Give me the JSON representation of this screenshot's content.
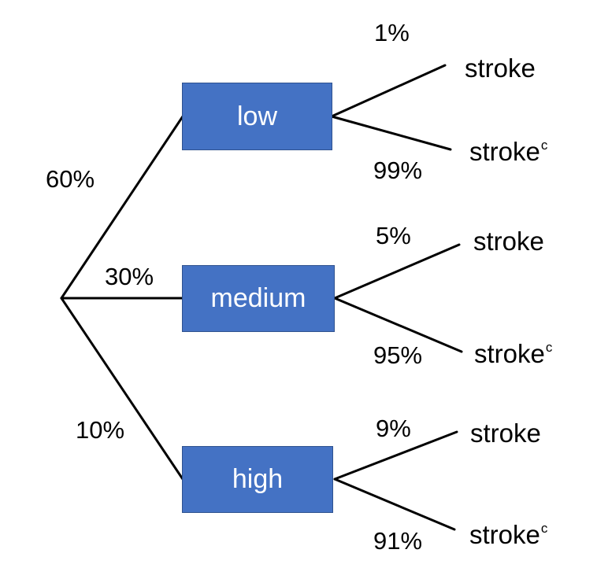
{
  "tree": {
    "root_branches": [
      {
        "prob": "60%",
        "node": "low",
        "outcomes": [
          {
            "prob": "1%",
            "label": "stroke",
            "sup": ""
          },
          {
            "prob": "99%",
            "label": "stroke",
            "sup": "c"
          }
        ]
      },
      {
        "prob": "30%",
        "node": "medium",
        "outcomes": [
          {
            "prob": "5%",
            "label": "stroke",
            "sup": ""
          },
          {
            "prob": "95%",
            "label": "stroke",
            "sup": "c"
          }
        ]
      },
      {
        "prob": "10%",
        "node": "high",
        "outcomes": [
          {
            "prob": "9%",
            "label": "stroke",
            "sup": ""
          },
          {
            "prob": "91%",
            "label": "stroke",
            "sup": "c"
          }
        ]
      }
    ]
  },
  "colors": {
    "node_fill": "#4472C4",
    "node_border": "#2F528F",
    "node_text": "#ffffff",
    "line": "#000000"
  }
}
